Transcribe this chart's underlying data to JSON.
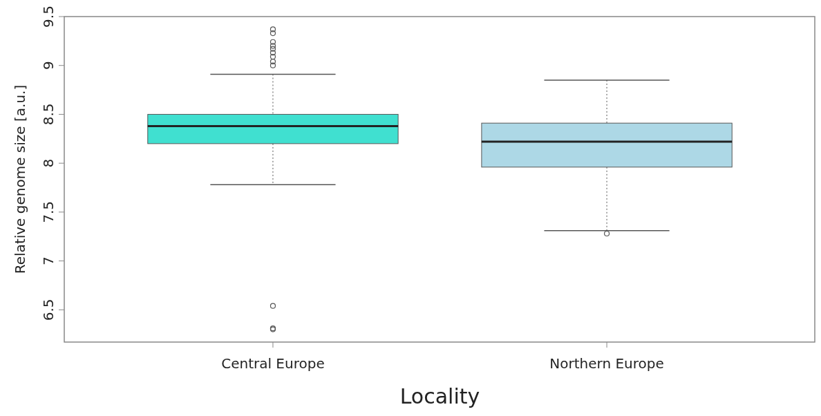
{
  "chart_data": {
    "type": "box",
    "xlabel": "Locality",
    "ylabel": "Relative genome size [a.u.]",
    "categories": [
      "Central Europe",
      "Northern Europe"
    ],
    "colors": [
      "#40e0d0",
      "#add8e6"
    ],
    "boxes": [
      {
        "low": 7.78,
        "q1": 8.2,
        "median": 8.38,
        "q3": 8.5,
        "high": 8.91,
        "outliers": [
          9.37,
          9.33,
          9.24,
          9.2,
          9.17,
          9.13,
          9.09,
          9.04,
          9.0,
          6.54,
          6.31,
          6.3
        ]
      },
      {
        "low": 7.31,
        "q1": 7.96,
        "median": 8.22,
        "q3": 8.41,
        "high": 8.85,
        "outliers": [
          7.28
        ]
      }
    ],
    "ylim": [
      6.17,
      9.5
    ],
    "yticks": [
      6.5,
      7,
      7.5,
      8,
      8.5,
      9,
      9.5
    ],
    "grid": false
  }
}
